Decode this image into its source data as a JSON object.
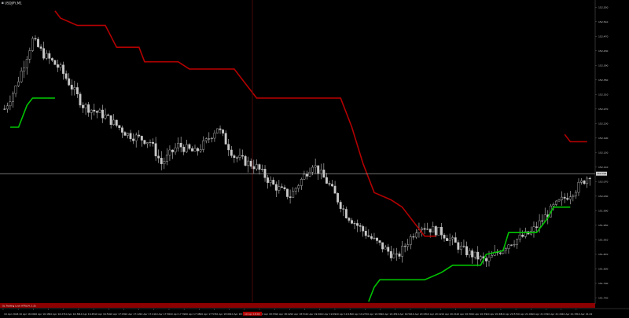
{
  "window": {
    "symbol_title": "USDJPY,M1",
    "indicator_label": "SL Trailing Lock ATR(14, 1.5)"
  },
  "colors": {
    "background": "#000000",
    "candle": "#c8c8c8",
    "stop_upper": "#b30000",
    "stop_lower": "#00c400",
    "crosshair_v": "#5c0a0a",
    "current_price_line": "#b8b8b8",
    "indicator_band": "#8b0000",
    "axis_bg": "#000000"
  },
  "chart_data": {
    "type": "candlestick",
    "title": "USDJPY,M1",
    "x_tick_labels": [
      "10 Apr 2024",
      "10 Apr 16:09",
      "10 Apr 16:18",
      "10 Apr 16:27",
      "10 Apr 16:36",
      "10 Apr 16:45",
      "10 Apr 16:54",
      "10 Apr 17:03",
      "10 Apr 17:12",
      "10 Apr 17:21",
      "10 Apr 17:30",
      "10 Apr 17:39",
      "10 Apr 17:48",
      "10 Apr 17:57",
      "10 Apr 18:06",
      "10 Apr 18:15",
      "10 Apr 18:24",
      "10 Apr 18:33",
      "10 Apr 18:42",
      "10 Apr 18:51",
      "10 Apr 19:00",
      "10 Apr 19:09",
      "10 Apr 19:18",
      "10 Apr 19:27",
      "10 Apr 19:36",
      "10 Apr 19:45",
      "10 Apr 19:54",
      "10 Apr 20:03",
      "10 Apr 20:12",
      "10 Apr 20:21",
      "10 Apr 20:30",
      "10 Apr 20:39",
      "10 Apr 20:48",
      "10 Apr 20:57",
      "10 Apr 21:06",
      "10 Apr 21:15",
      "10 Apr 21:24",
      "10 Apr 21:33",
      "10 Apr 21:42"
    ],
    "crosshair_time_label": "10 Apr 18:04",
    "y_tick_labels": [
      "152.550",
      "152.510",
      "152.470",
      "152.430",
      "152.390",
      "152.350",
      "152.310",
      "152.270",
      "152.230",
      "152.190",
      "152.150",
      "152.110",
      "152.070",
      "152.030",
      "151.990",
      "151.950",
      "151.910",
      "151.870",
      "151.830",
      "151.790",
      "151.750"
    ],
    "current_price": 152.092,
    "current_price_label": "152.092",
    "ylim": [
      151.738,
      152.57
    ],
    "candle_count": 210,
    "anchors": [
      [
        0,
        152.27
      ],
      [
        4,
        152.33
      ],
      [
        10,
        152.46
      ],
      [
        14,
        152.42
      ],
      [
        20,
        152.38
      ],
      [
        28,
        152.28
      ],
      [
        36,
        152.25
      ],
      [
        44,
        152.2
      ],
      [
        52,
        152.18
      ],
      [
        56,
        152.12
      ],
      [
        62,
        152.17
      ],
      [
        68,
        152.15
      ],
      [
        72,
        152.18
      ],
      [
        76,
        152.22
      ],
      [
        82,
        152.14
      ],
      [
        90,
        152.11
      ],
      [
        96,
        152.06
      ],
      [
        102,
        152.03
      ],
      [
        110,
        152.12
      ],
      [
        116,
        152.06
      ],
      [
        122,
        151.98
      ],
      [
        130,
        151.92
      ],
      [
        140,
        151.86
      ],
      [
        148,
        151.95
      ],
      [
        156,
        151.93
      ],
      [
        164,
        151.88
      ],
      [
        172,
        151.85
      ],
      [
        180,
        151.9
      ],
      [
        188,
        151.93
      ],
      [
        196,
        152.0
      ],
      [
        204,
        152.05
      ],
      [
        209,
        152.09
      ]
    ],
    "series": [
      {
        "name": "upper stop",
        "points": [
          [
            18,
            152.54
          ],
          [
            20,
            152.52
          ],
          [
            26,
            152.5
          ],
          [
            36,
            152.5
          ],
          [
            40,
            152.44
          ],
          [
            48,
            152.44
          ],
          [
            50,
            152.4
          ],
          [
            62,
            152.4
          ],
          [
            66,
            152.38
          ],
          [
            82,
            152.38
          ],
          [
            86,
            152.34
          ],
          [
            90,
            152.3
          ],
          [
            120,
            152.3
          ],
          [
            124,
            152.22
          ],
          [
            128,
            152.12
          ],
          [
            132,
            152.04
          ],
          [
            138,
            152.02
          ],
          [
            142,
            152.0
          ],
          [
            146,
            151.96
          ],
          [
            150,
            151.92
          ],
          [
            154,
            151.92
          ]
        ]
      },
      {
        "name": "upper stop late",
        "points": [
          [
            200,
            152.2
          ],
          [
            202,
            152.18
          ],
          [
            208,
            152.18
          ]
        ]
      },
      {
        "name": "lower stop",
        "points": [
          [
            2,
            152.22
          ],
          [
            5,
            152.22
          ],
          [
            8,
            152.28
          ],
          [
            10,
            152.3
          ],
          [
            18,
            152.3
          ]
        ]
      },
      {
        "name": "lower stop late",
        "points": [
          [
            130,
            151.74
          ],
          [
            132,
            151.78
          ],
          [
            134,
            151.8
          ],
          [
            150,
            151.8
          ],
          [
            156,
            151.82
          ],
          [
            160,
            151.84
          ],
          [
            170,
            151.84
          ],
          [
            172,
            151.87
          ],
          [
            178,
            151.88
          ],
          [
            180,
            151.93
          ],
          [
            190,
            151.93
          ],
          [
            194,
            151.97
          ],
          [
            196,
            152.0
          ],
          [
            202,
            152.0
          ]
        ]
      }
    ]
  }
}
